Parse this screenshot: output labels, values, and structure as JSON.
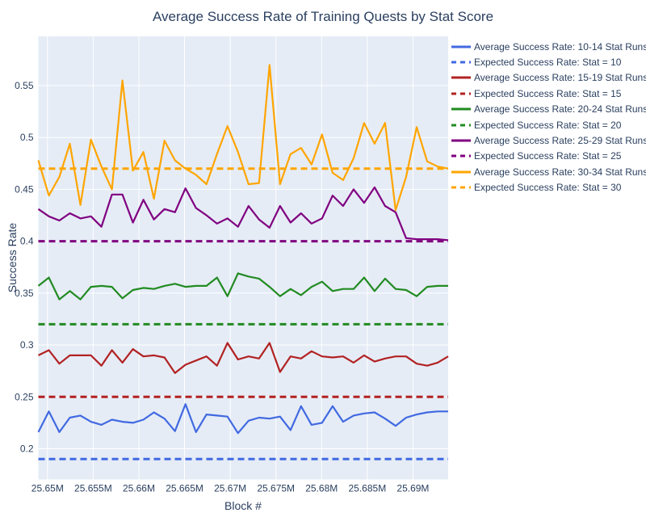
{
  "title": "Average Success Rate of Training Quests by Stat Score",
  "axes": {
    "x_label": "Block #",
    "y_label": "Success Rate",
    "x_ticks": {
      "labels": [
        "25.65M",
        "25.655M",
        "25.66M",
        "25.665M",
        "25.67M",
        "25.675M",
        "25.68M",
        "25.685M",
        "25.69M"
      ],
      "values": [
        25650000,
        25655000,
        25660000,
        25665000,
        25670000,
        25675000,
        25680000,
        25685000,
        25690000
      ]
    },
    "y_ticks": {
      "labels": [
        "0.2",
        "0.25",
        "0.3",
        "0.35",
        "0.4",
        "0.45",
        "0.5",
        "0.55"
      ],
      "values": [
        0.2,
        0.25,
        0.3,
        0.35,
        0.4,
        0.45,
        0.5,
        0.55
      ]
    }
  },
  "colors": {
    "paper_bg": "#ffffff",
    "plot_bg": "#E5ECF6",
    "grid": "#ffffff",
    "text": "#2a3f5f",
    "blue": "#4169E1",
    "red": "#B22222",
    "green": "#228B22",
    "purple": "#800080",
    "orange": "#FFA500"
  },
  "chart_data": {
    "type": "line",
    "xlabel": "Block #",
    "ylabel": "Success Rate",
    "x_range": [
      25649000,
      25693850
    ],
    "y_range": [
      0.1704,
      0.5975
    ],
    "grid": true,
    "legend_position": "right-outside-top",
    "x": [
      25649000,
      25650150,
      25651300,
      25652450,
      25653600,
      25654750,
      25655900,
      25657050,
      25658200,
      25659350,
      25660500,
      25661650,
      25662800,
      25663950,
      25665100,
      25666250,
      25667400,
      25668550,
      25669700,
      25670850,
      25672000,
      25673150,
      25674300,
      25675450,
      25676600,
      25677750,
      25678900,
      25680050,
      25681200,
      25682350,
      25683500,
      25684650,
      25685800,
      25686950,
      25688100,
      25689250,
      25690400,
      25691550,
      25692700,
      25693850
    ],
    "series": [
      {
        "name": "Average Success Rate: 10-14 Stat Runs",
        "color": "#4169E1",
        "dash": "solid",
        "values": [
          0.216,
          0.236,
          0.216,
          0.23,
          0.232,
          0.226,
          0.223,
          0.228,
          0.226,
          0.225,
          0.228,
          0.235,
          0.229,
          0.217,
          0.243,
          0.216,
          0.233,
          0.232,
          0.231,
          0.215,
          0.227,
          0.23,
          0.229,
          0.231,
          0.218,
          0.241,
          0.223,
          0.225,
          0.241,
          0.226,
          0.232,
          0.234,
          0.235,
          0.229,
          0.222,
          0.23,
          0.233,
          0.235,
          0.236,
          0.236
        ]
      },
      {
        "name": "Expected Success Rate: Stat = 10",
        "color": "#4169E1",
        "dash": "dash",
        "constant": 0.19
      },
      {
        "name": "Average Success Rate: 15-19 Stat Runs",
        "color": "#B22222",
        "dash": "solid",
        "values": [
          0.29,
          0.295,
          0.282,
          0.29,
          0.29,
          0.29,
          0.28,
          0.295,
          0.283,
          0.296,
          0.289,
          0.29,
          0.288,
          0.273,
          0.281,
          0.285,
          0.289,
          0.28,
          0.302,
          0.286,
          0.289,
          0.287,
          0.302,
          0.274,
          0.289,
          0.287,
          0.294,
          0.289,
          0.288,
          0.289,
          0.283,
          0.29,
          0.284,
          0.287,
          0.289,
          0.289,
          0.282,
          0.28,
          0.283,
          0.289
        ]
      },
      {
        "name": "Expected Success Rate: Stat = 15",
        "color": "#B22222",
        "dash": "dash",
        "constant": 0.25
      },
      {
        "name": "Average Success Rate: 20-24 Stat Runs",
        "color": "#228B22",
        "dash": "solid",
        "values": [
          0.357,
          0.365,
          0.344,
          0.352,
          0.344,
          0.356,
          0.357,
          0.356,
          0.345,
          0.353,
          0.355,
          0.354,
          0.357,
          0.359,
          0.356,
          0.357,
          0.357,
          0.365,
          0.347,
          0.369,
          0.366,
          0.364,
          0.356,
          0.347,
          0.354,
          0.348,
          0.356,
          0.361,
          0.352,
          0.354,
          0.354,
          0.365,
          0.352,
          0.364,
          0.354,
          0.353,
          0.347,
          0.356,
          0.357,
          0.357
        ]
      },
      {
        "name": "Expected Success Rate: Stat = 20",
        "color": "#228B22",
        "dash": "dash",
        "constant": 0.32
      },
      {
        "name": "Average Success Rate: 25-29 Stat Runs",
        "color": "#800080",
        "dash": "solid",
        "values": [
          0.431,
          0.424,
          0.42,
          0.427,
          0.422,
          0.424,
          0.414,
          0.445,
          0.445,
          0.418,
          0.44,
          0.421,
          0.431,
          0.428,
          0.451,
          0.432,
          0.425,
          0.417,
          0.422,
          0.414,
          0.434,
          0.421,
          0.413,
          0.434,
          0.418,
          0.427,
          0.417,
          0.422,
          0.444,
          0.434,
          0.45,
          0.437,
          0.452,
          0.434,
          0.428,
          0.403,
          0.402,
          0.402,
          0.402,
          0.401
        ]
      },
      {
        "name": "Expected Success Rate: Stat = 25",
        "color": "#800080",
        "dash": "dash",
        "constant": 0.4
      },
      {
        "name": "Average Success Rate: 30-34 Stat Runs",
        "color": "#FFA500",
        "dash": "solid",
        "values": [
          0.478,
          0.444,
          0.462,
          0.494,
          0.435,
          0.498,
          0.472,
          0.45,
          0.555,
          0.468,
          0.486,
          0.441,
          0.497,
          0.478,
          0.47,
          0.464,
          0.455,
          0.484,
          0.511,
          0.486,
          0.455,
          0.456,
          0.57,
          0.455,
          0.484,
          0.49,
          0.474,
          0.503,
          0.466,
          0.459,
          0.48,
          0.514,
          0.494,
          0.514,
          0.43,
          0.462,
          0.51,
          0.477,
          0.472,
          0.47
        ]
      },
      {
        "name": "Expected Success Rate: Stat = 30",
        "color": "#FFA500",
        "dash": "dash",
        "constant": 0.47
      }
    ],
    "title": "Average Success Rate of Training Quests by Stat Score"
  }
}
